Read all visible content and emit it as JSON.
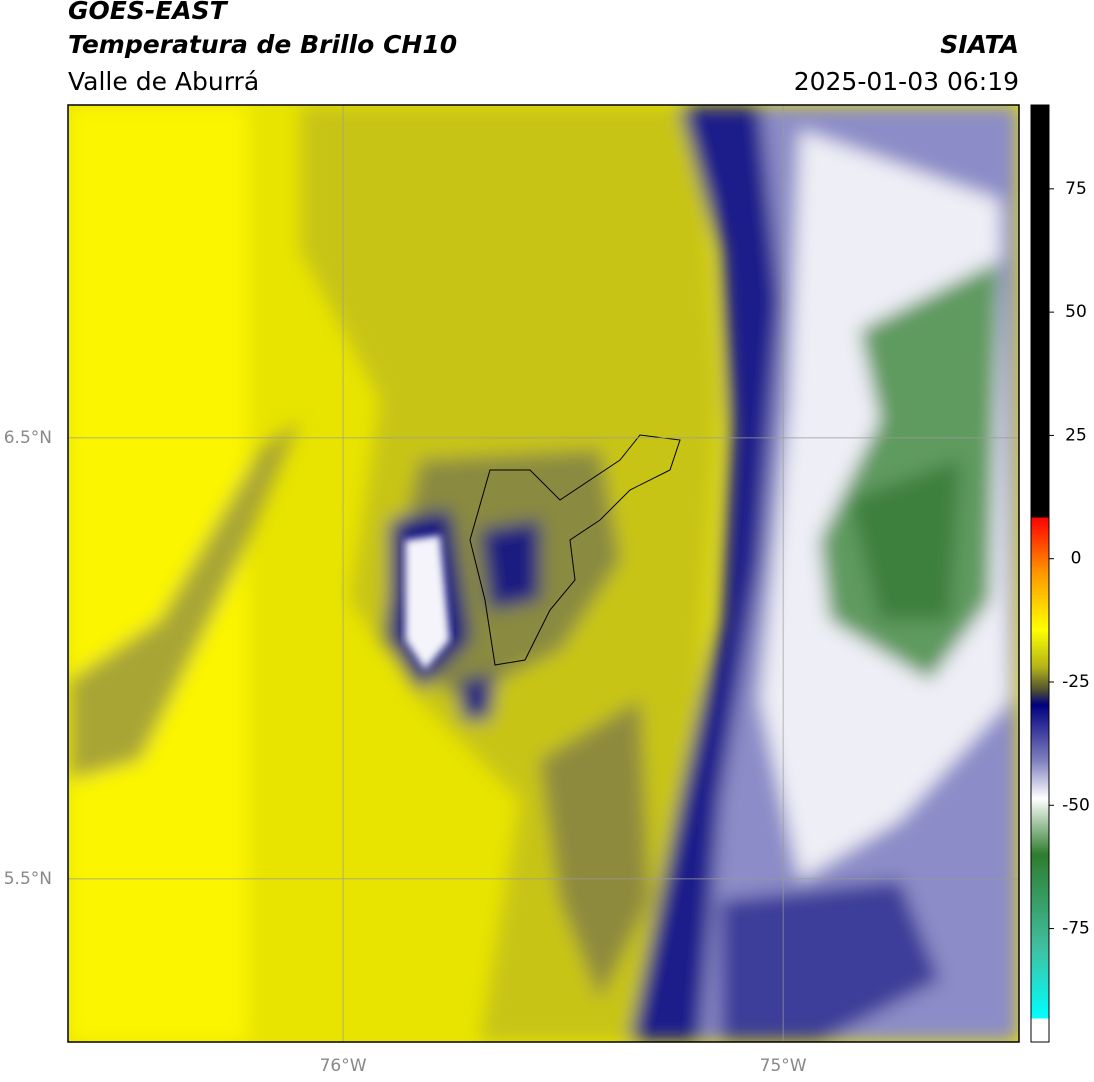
{
  "header": {
    "title": "GOES-EAST",
    "subtitle": "Temperatura de Brillo CH10",
    "region": "Valle de Aburrá",
    "source": "SIATA",
    "datetime": "2025-01-03 06:19"
  },
  "map": {
    "xlim": [
      -76.625,
      -74.464
    ],
    "ylim": [
      5.13,
      7.255
    ],
    "xticks": [
      {
        "value": -76,
        "label": "76°W"
      },
      {
        "value": -75,
        "label": "75°W"
      }
    ],
    "yticks": [
      {
        "value": 6.5,
        "label": "6.5°N"
      },
      {
        "value": 5.5,
        "label": "5.5°N"
      }
    ]
  },
  "colorbar": {
    "lim": [
      -98,
      92
    ],
    "ticks": [
      75,
      50,
      25,
      0,
      -25,
      -50,
      -75
    ]
  }
}
